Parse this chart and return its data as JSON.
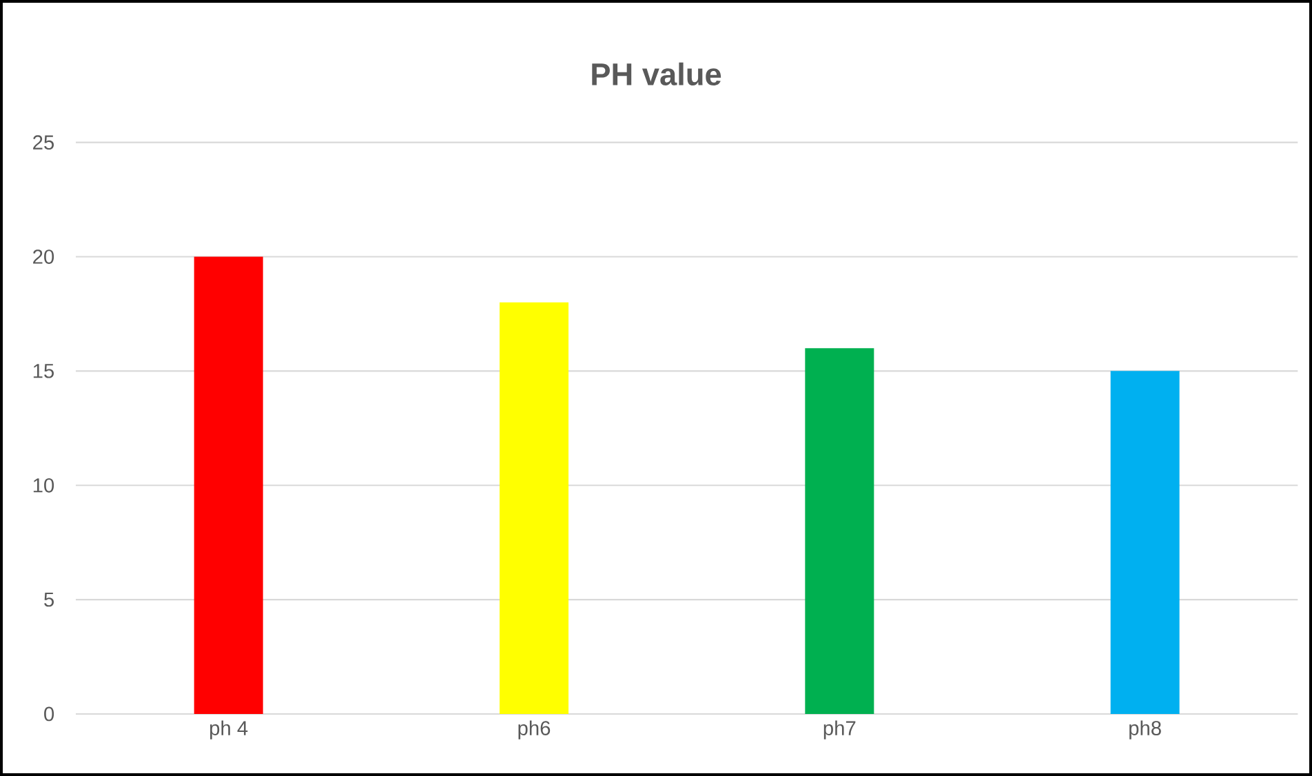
{
  "chart_data": {
    "type": "bar",
    "title": "PH value",
    "categories": [
      "ph 4",
      "ph6",
      "ph7",
      "ph8"
    ],
    "values": [
      20,
      18,
      16,
      15
    ],
    "colors": [
      "#ff0000",
      "#ffff00",
      "#00b050",
      "#00b0f0"
    ],
    "ylim": [
      0,
      25
    ],
    "yticks": [
      0,
      5,
      10,
      15,
      20,
      25
    ],
    "grid": "y"
  }
}
